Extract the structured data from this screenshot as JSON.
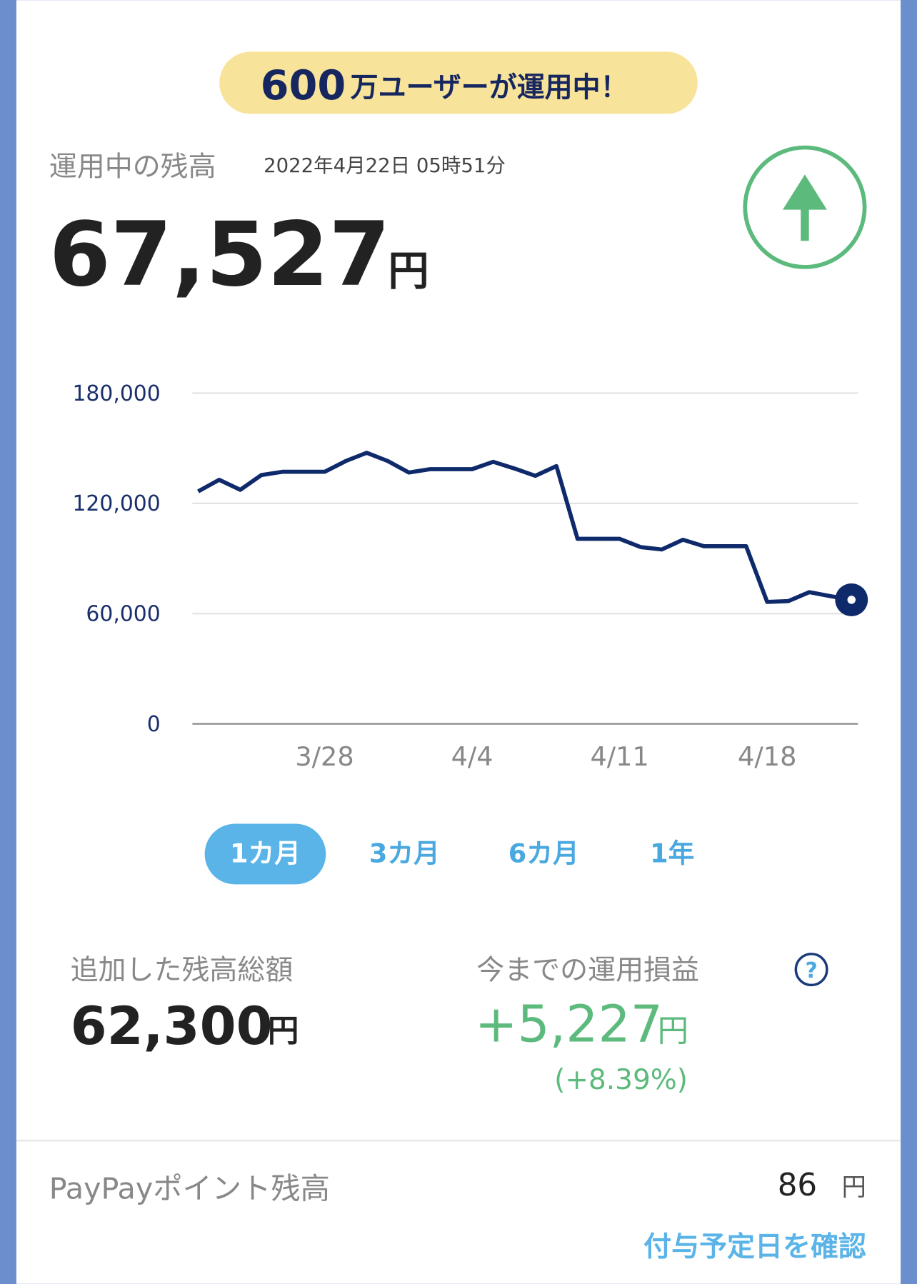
{
  "banner": {
    "number": "600",
    "text": "万ユーザーが運用中！"
  },
  "balance": {
    "label": "運用中の残高",
    "timestamp": "2022年4月22日 05時51分",
    "amount": "67,527",
    "unit": "円"
  },
  "chart_data": {
    "type": "line",
    "categories": [
      null,
      null,
      null,
      null,
      null,
      null,
      "3/28",
      null,
      null,
      null,
      null,
      null,
      null,
      "4/4",
      null,
      null,
      null,
      null,
      null,
      null,
      "4/11",
      null,
      null,
      null,
      null,
      null,
      null,
      "4/18",
      null,
      null,
      null,
      null
    ],
    "values": [
      126500,
      132800,
      127400,
      135400,
      137200,
      137200,
      137200,
      143000,
      147500,
      143000,
      136800,
      138600,
      138600,
      138600,
      142600,
      139000,
      135000,
      140300,
      100700,
      100700,
      100700,
      96200,
      94900,
      100200,
      96700,
      96700,
      96700,
      66400,
      66800,
      71700,
      69500,
      67527
    ],
    "color": "#0f2a6b",
    "ylim": [
      0,
      180000
    ],
    "yticks": [
      0,
      {
        "value": 60000,
        "label": "60,000"
      },
      {
        "value": 120000,
        "label": "120,000"
      },
      {
        "value": 180000,
        "label": "180,000"
      }
    ],
    "grid": true
  },
  "tabs": [
    "1カ月",
    "3カ月",
    "6カ月",
    "1年"
  ],
  "stats": {
    "added": {
      "label": "追加した残高総額",
      "amount": "62,300",
      "unit": "円"
    },
    "profit": {
      "label": "今までの運用損益",
      "amount": "+5,227",
      "unit": "円",
      "percent": "(+8.39%)",
      "help": "?"
    }
  },
  "points": {
    "label": "PayPayポイント残高",
    "amount": "86",
    "unit": "円",
    "link": "付与予定日を確認"
  }
}
